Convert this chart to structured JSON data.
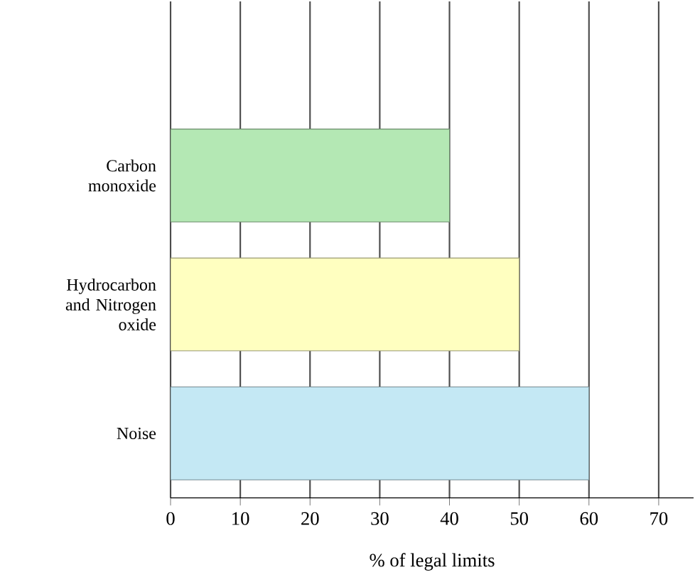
{
  "chart_data": {
    "type": "bar",
    "orientation": "horizontal",
    "categories": [
      "Carbon monoxide",
      "Hydrocarbon and Nitrogen oxide",
      "Noise"
    ],
    "values": [
      40,
      50,
      60
    ],
    "colors": [
      "#b4e8b4",
      "#ffffc0",
      "#c4e8f4"
    ],
    "xlabel": "% of legal limits",
    "xlim": [
      0,
      75
    ],
    "xticks": [
      0,
      10,
      20,
      30,
      40,
      50,
      60,
      70
    ],
    "grid": "x"
  }
}
